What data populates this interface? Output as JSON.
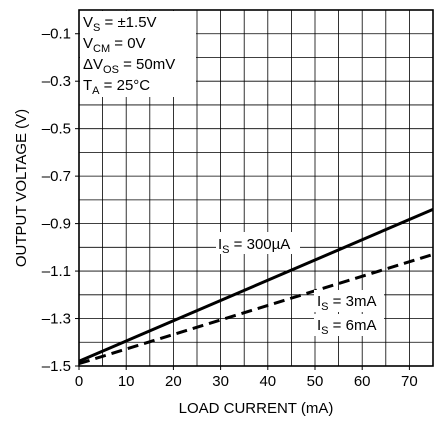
{
  "chart_data": {
    "type": "line",
    "x": [
      0,
      75
    ],
    "series": [
      {
        "name": "IS = 300µA",
        "values": [
          -1.48,
          -0.84
        ],
        "style": "solid"
      },
      {
        "name": "IS = 3mA, IS = 6mA",
        "values": [
          -1.49,
          -1.03
        ],
        "style": "dashed"
      }
    ],
    "xlabel": "LOAD CURRENT (mA)",
    "ylabel": "OUTPUT VOLTAGE (V)",
    "xlim": [
      0,
      75
    ],
    "ylim": [
      -1.5,
      0
    ],
    "x_ticks": [
      0,
      10,
      20,
      30,
      40,
      50,
      60,
      70
    ],
    "x_tick_labels": [
      "0",
      "10",
      "20",
      "30",
      "40",
      "50",
      "60",
      "70"
    ],
    "y_tick_values": [
      -1.5,
      -1.3,
      -1.1,
      -0.9,
      -0.7,
      -0.5,
      -0.3,
      -0.1
    ],
    "y_tick_labels": [
      "–1.5",
      "–1.3",
      "–1.1",
      "–0.9",
      "–0.7",
      "–0.5",
      "–0.3",
      "–0.1"
    ],
    "x_grid_step": 5,
    "y_grid_step": 0.1,
    "grid": true,
    "conditions": [
      {
        "main": "V",
        "sub": "S",
        "rest": " = ±1.5V"
      },
      {
        "main": "V",
        "sub": "CM",
        "rest": " = 0V"
      },
      {
        "main": "ΔV",
        "sub": "OS",
        "rest": " = 50mV"
      },
      {
        "main": "T",
        "sub": "A",
        "rest": " = 25°C"
      }
    ],
    "curve_labels": [
      {
        "main": "I",
        "sub": "S",
        "rest": " = 300µA"
      },
      {
        "main": "I",
        "sub": "S",
        "rest": " = 3mA"
      },
      {
        "main": "I",
        "sub": "S",
        "rest": " = 6mA"
      }
    ],
    "colors": {
      "line": "#000000",
      "grid": "#000000",
      "background": "#ffffff"
    }
  }
}
